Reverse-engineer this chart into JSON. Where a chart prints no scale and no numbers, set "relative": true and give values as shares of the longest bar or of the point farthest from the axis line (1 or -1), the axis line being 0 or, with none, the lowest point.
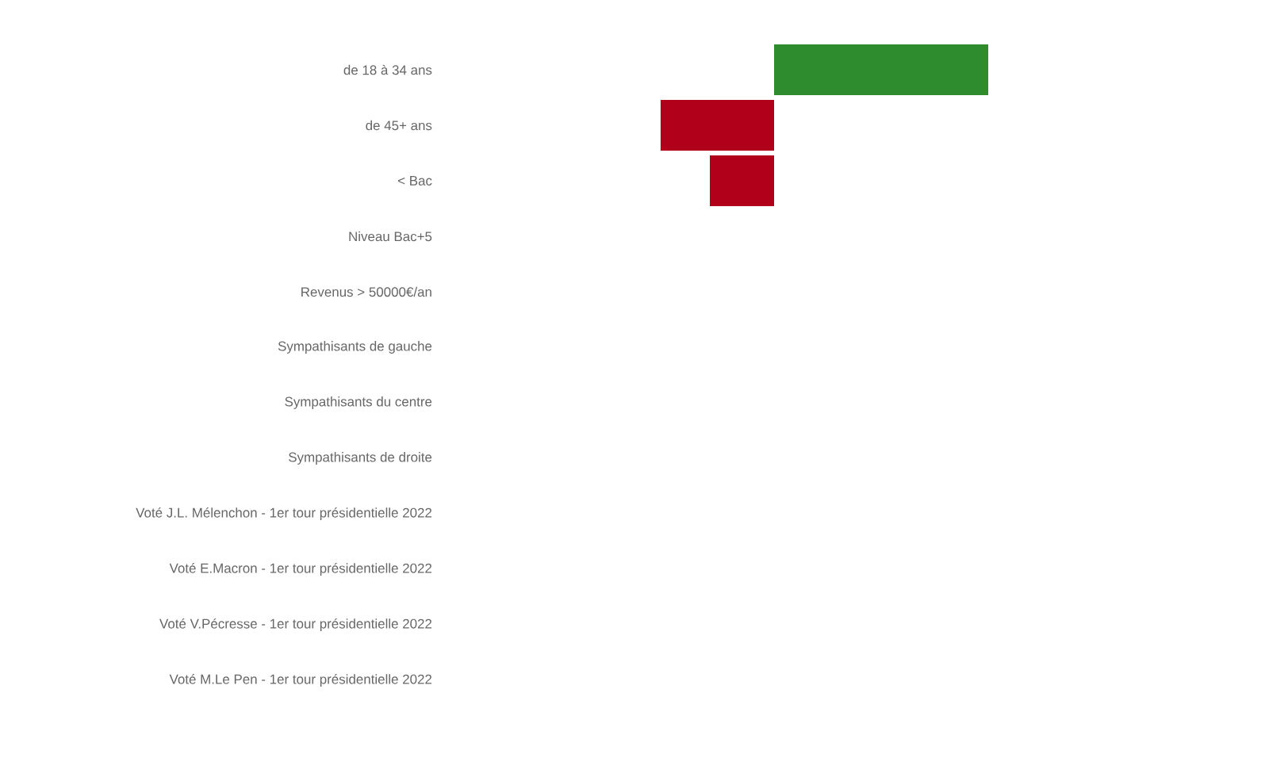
{
  "chart_data": {
    "type": "bar",
    "orientation": "horizontal",
    "relative": true,
    "categories": [
      "de 18 à 34 ans",
      "de 45+ ans",
      "< Bac",
      "Niveau Bac+5",
      "Revenus > 50000€/an",
      "Sympathisants de gauche",
      "Sympathisants du centre",
      "Sympathisants de droite",
      "Voté J.L. Mélenchon - 1er tour présidentielle 2022",
      "Voté E.Macron - 1er tour présidentielle 2022",
      "Voté V.Pécresse - 1er tour présidentielle 2022",
      "Voté M.Le Pen - 1er tour présidentielle 2022"
    ],
    "values": [
      1,
      -0.53,
      -0.3,
      null,
      null,
      null,
      null,
      null,
      null,
      null,
      null,
      null
    ],
    "colors": [
      "#2e8b2e",
      "#b0001a",
      "#b0001a",
      null,
      null,
      null,
      null,
      null,
      null,
      null,
      null,
      null
    ]
  }
}
